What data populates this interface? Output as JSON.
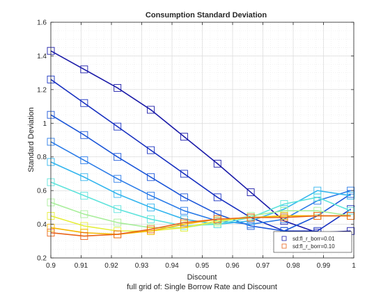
{
  "chart_data": {
    "type": "line",
    "title": "Consumption Standard Deviation",
    "xlabel": "Discount",
    "ylabel": "Standard Deviation",
    "subtitle": "full grid of: Single Borrow Rate and Discount",
    "xlim": [
      0.9,
      1.0
    ],
    "ylim": [
      0.2,
      1.6
    ],
    "xticks": [
      "0.9",
      "0.91",
      "0.92",
      "0.93",
      "0.94",
      "0.95",
      "0.96",
      "0.97",
      "0.98",
      "0.99",
      "1"
    ],
    "yticks": [
      "0.2",
      "0.4",
      "0.6",
      "0.8",
      "1",
      "1.2",
      "1.4",
      "1.6"
    ],
    "grid": true,
    "legend_position": "bottom-right",
    "legend": [
      "sd:fl_r_borr=0.01",
      "sd:fl_r_borr=0.10"
    ],
    "x": [
      0.9,
      0.911,
      0.922,
      0.933,
      0.944,
      0.955,
      0.966,
      0.977,
      0.988,
      0.999
    ],
    "series": [
      {
        "color": "#1a1aa8",
        "values": [
          1.43,
          1.32,
          1.21,
          1.08,
          0.92,
          0.76,
          0.59,
          0.42,
          0.35,
          0.36
        ]
      },
      {
        "color": "#1730c0",
        "values": [
          1.26,
          1.12,
          0.98,
          0.84,
          0.7,
          0.56,
          0.44,
          0.36,
          0.36,
          0.49
        ]
      },
      {
        "color": "#1a55d8",
        "values": [
          1.05,
          0.93,
          0.8,
          0.68,
          0.56,
          0.46,
          0.39,
          0.36,
          0.45,
          0.58
        ]
      },
      {
        "color": "#2a7be8",
        "values": [
          0.89,
          0.78,
          0.67,
          0.57,
          0.48,
          0.42,
          0.4,
          0.43,
          0.54,
          0.6
        ]
      },
      {
        "color": "#33b5ee",
        "values": [
          0.77,
          0.68,
          0.58,
          0.5,
          0.43,
          0.4,
          0.42,
          0.49,
          0.6,
          0.57
        ]
      },
      {
        "color": "#5fe3dc",
        "values": [
          0.65,
          0.57,
          0.49,
          0.43,
          0.39,
          0.4,
          0.44,
          0.52,
          0.56,
          0.48
        ]
      },
      {
        "color": "#a8ee9a",
        "values": [
          0.53,
          0.46,
          0.41,
          0.38,
          0.38,
          0.41,
          0.45,
          0.48,
          0.48,
          0.45
        ]
      },
      {
        "color": "#e6ee3a",
        "values": [
          0.45,
          0.39,
          0.36,
          0.36,
          0.38,
          0.42,
          0.44,
          0.45,
          0.45,
          0.45
        ]
      },
      {
        "color": "#f5b800",
        "values": [
          0.38,
          0.35,
          0.34,
          0.36,
          0.4,
          0.43,
          0.44,
          0.45,
          0.45,
          0.45
        ]
      },
      {
        "color": "#e8641a",
        "values": [
          0.35,
          0.33,
          0.34,
          0.37,
          0.41,
          0.43,
          0.44,
          0.44,
          0.45,
          0.45
        ]
      }
    ]
  }
}
